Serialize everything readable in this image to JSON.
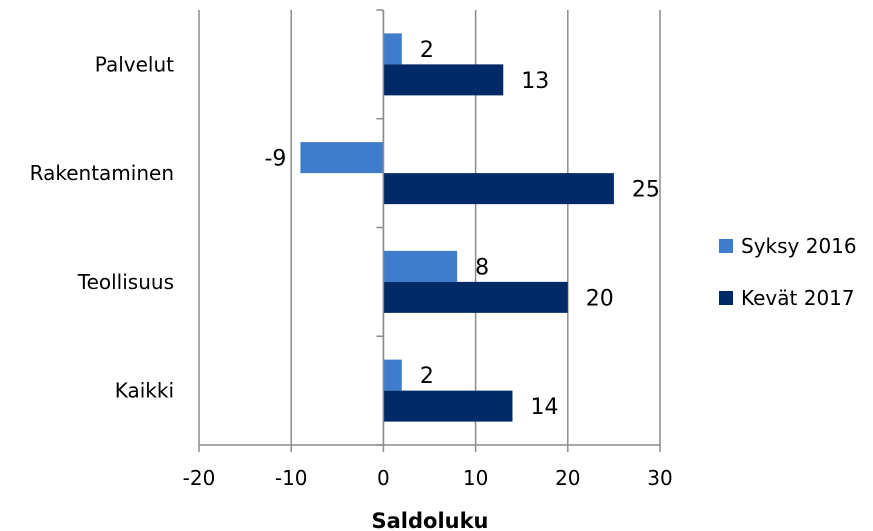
{
  "chart_data": {
    "type": "bar",
    "orientation": "horizontal",
    "categories": [
      "Palvelut",
      "Rakentaminen",
      "Teollisuus",
      "Kaikki"
    ],
    "series": [
      {
        "name": "Syksy 2016",
        "values": [
          2,
          -9,
          8,
          2
        ],
        "color": "#3f7dcc"
      },
      {
        "name": "Kevät 2017",
        "values": [
          13,
          25,
          20,
          14
        ],
        "color": "#012a66"
      }
    ],
    "xlabel": "Saldoluku",
    "xlim": [
      -20,
      30
    ],
    "xticks": [
      -20,
      -10,
      0,
      10,
      20,
      30
    ],
    "grid": "vertical",
    "legend": "right",
    "gridline_color": "#8c8c8c"
  }
}
